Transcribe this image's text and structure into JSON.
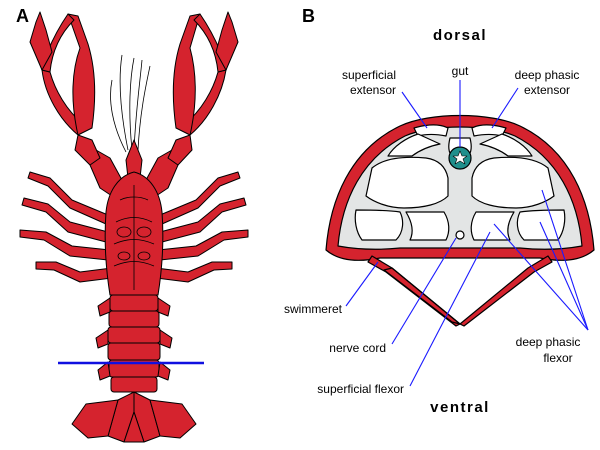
{
  "panel_a": {
    "letter": "A"
  },
  "panel_b": {
    "letter": "B",
    "dorsal": "dorsal",
    "ventral": "ventral",
    "labels": {
      "superficial_extensor_1": "superficial",
      "superficial_extensor_2": "extensor",
      "gut": "gut",
      "deep_phasic_extensor_1": "deep phasic",
      "deep_phasic_extensor_2": "extensor",
      "swimmeret": "swimmeret",
      "nerve_cord": "nerve cord",
      "superficial_flexor": "superficial flexor",
      "deep_phasic_flexor_1": "deep phasic",
      "deep_phasic_flexor_2": "flexor"
    }
  },
  "colors": {
    "body_red": "#d5232e",
    "outline": "#000000",
    "muscle_gray": "#e3e5e5",
    "gut_teal": "#1f8f8c",
    "leader_blue": "#1a1aff",
    "section_line": "#1010e0"
  }
}
